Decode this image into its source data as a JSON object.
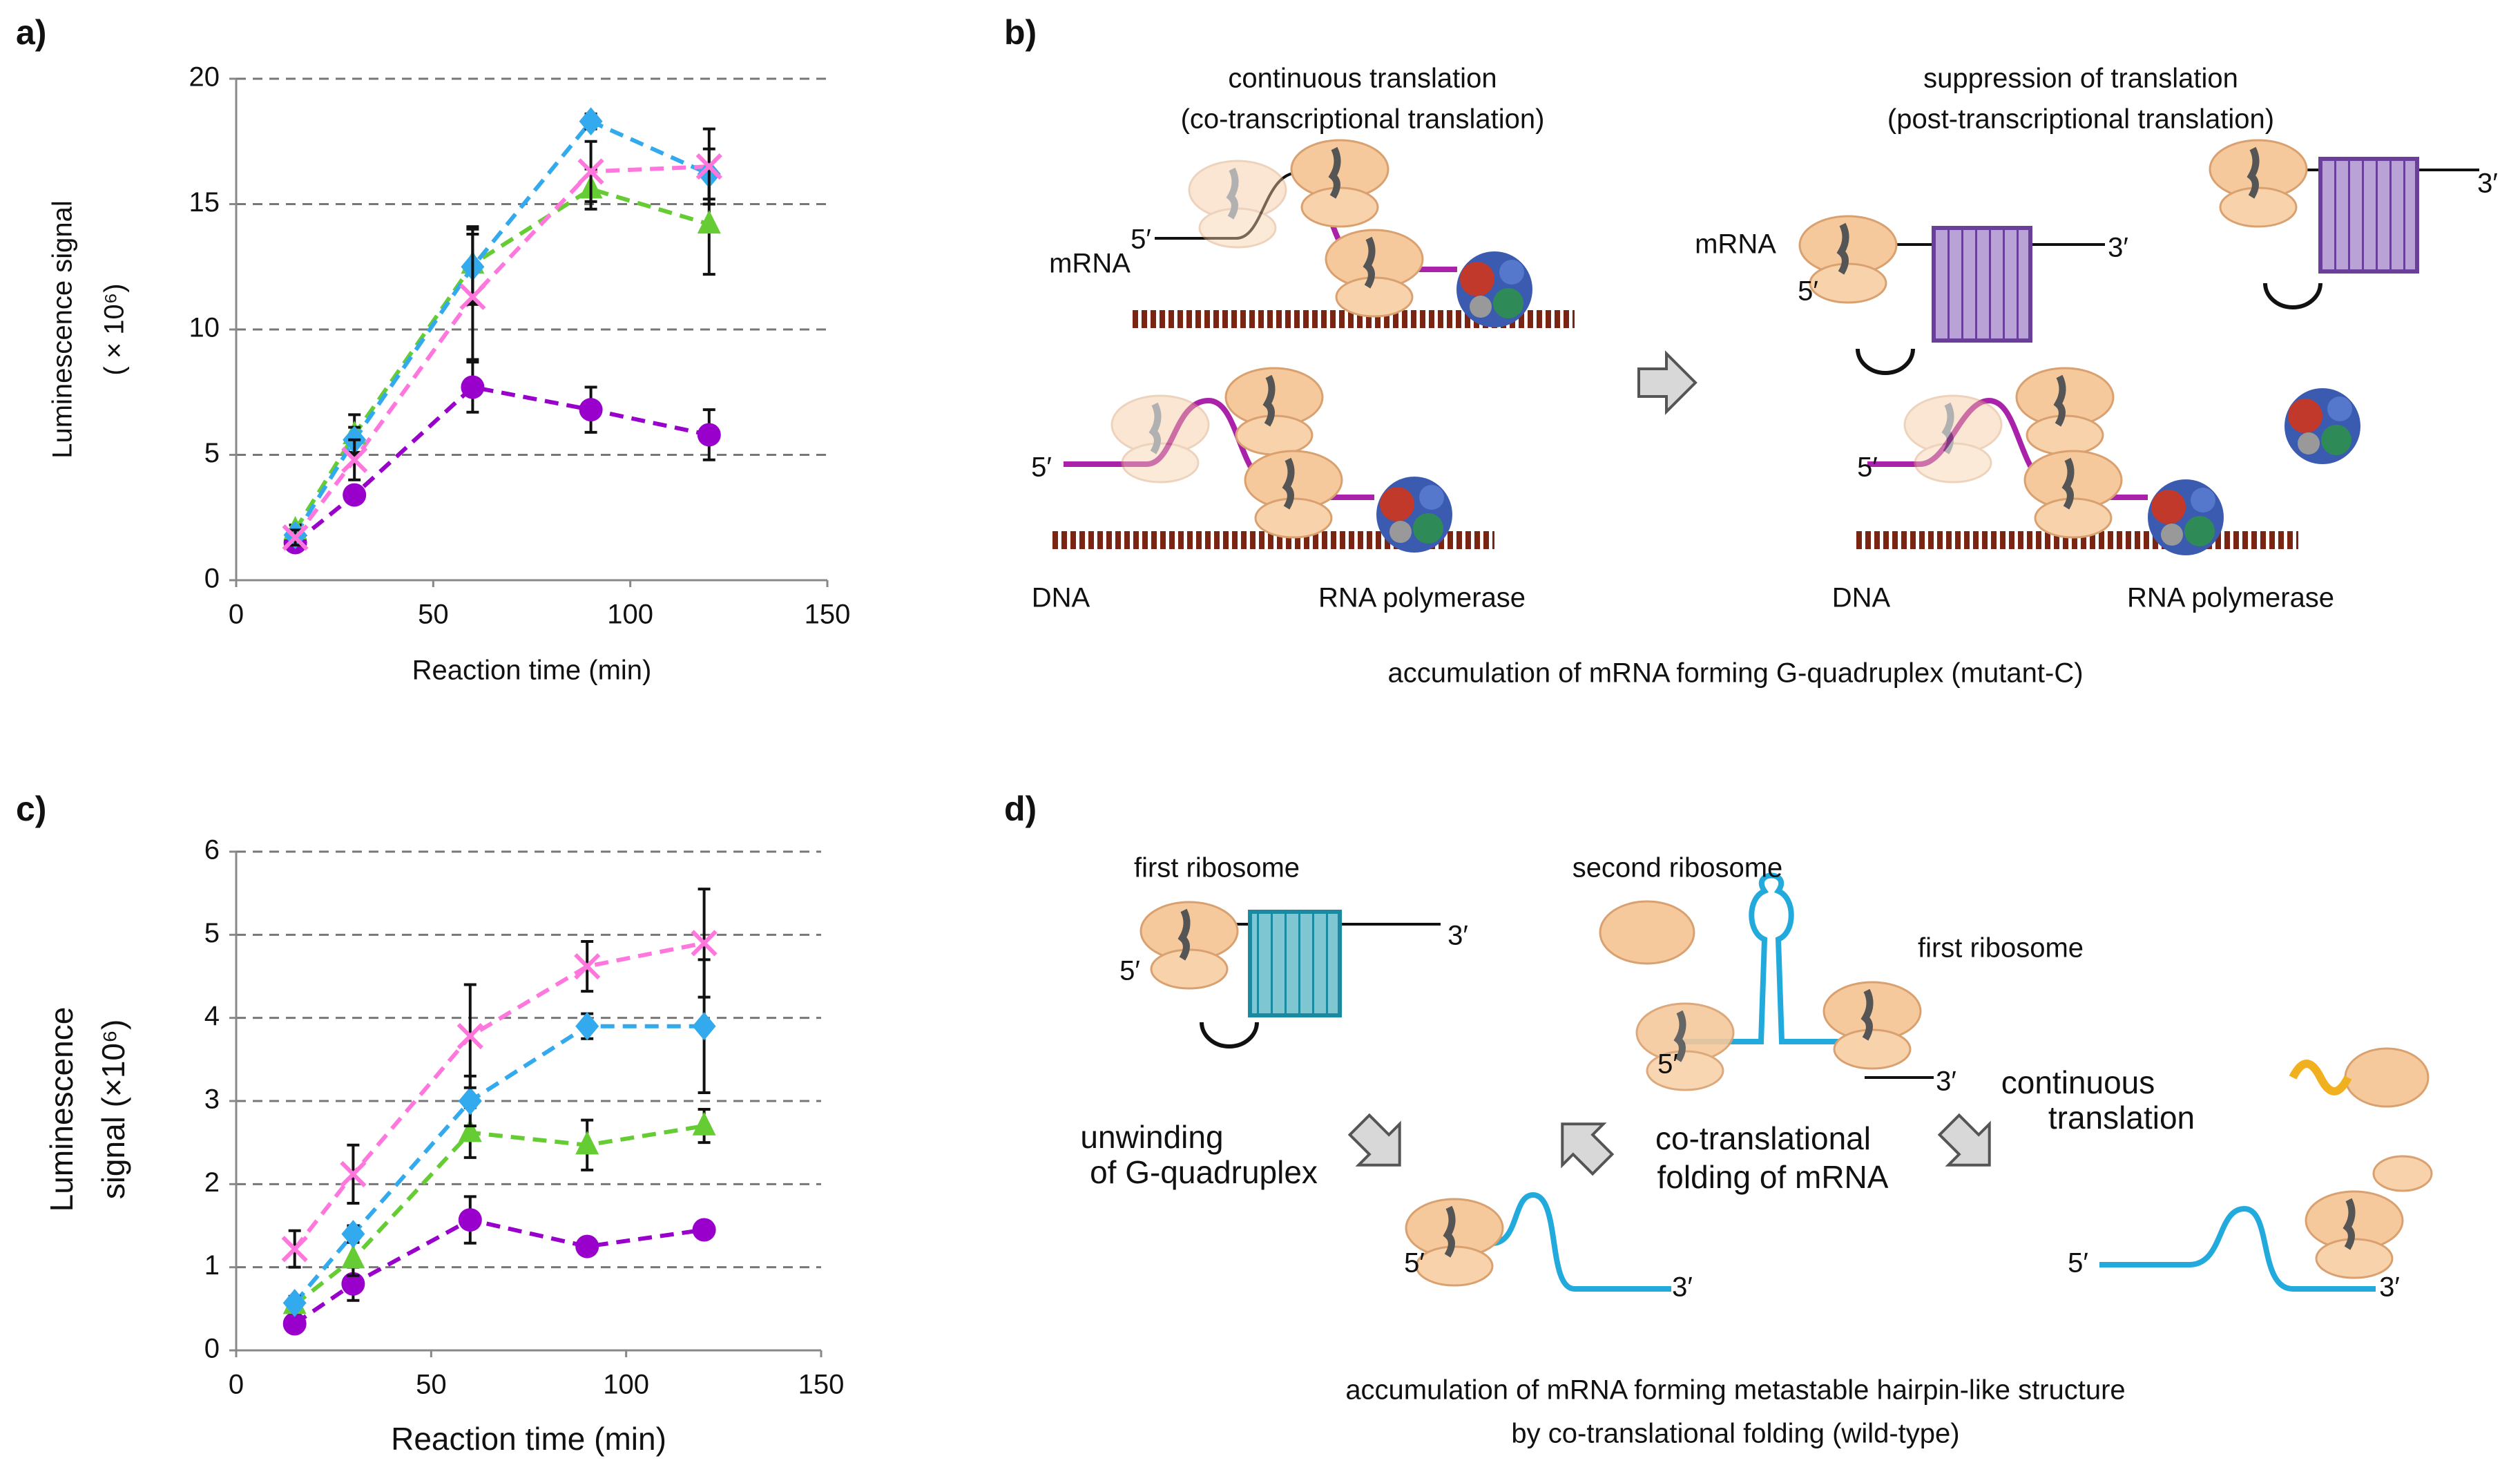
{
  "chart_data": [
    {
      "type": "line",
      "panel_label": "a)",
      "xlabel": "Reaction time (min)",
      "ylabel": [
        "Luminescence signal",
        "( × 10⁶)"
      ],
      "x": [
        15,
        30,
        60,
        90,
        120
      ],
      "xlim": [
        0,
        150
      ],
      "xticks": [
        0,
        50,
        100,
        150
      ],
      "ylim": [
        0,
        20
      ],
      "yticks": [
        0,
        5,
        10,
        15,
        20
      ],
      "grid": true,
      "line_style": "dashed",
      "series": [
        {
          "color": "#9900cc",
          "marker": "circle",
          "values": [
            1.5,
            3.4,
            7.7,
            6.8,
            5.8
          ],
          "errors": [
            0.3,
            0.3,
            1.0,
            0.9,
            1.0
          ]
        },
        {
          "color": "#66cc33",
          "marker": "triangle",
          "values": [
            2.0,
            5.8,
            12.6,
            15.6,
            14.2
          ],
          "errors": [
            0.2,
            0.8,
            1.5,
            0.8,
            2.0
          ]
        },
        {
          "color": "#33aaee",
          "marker": "diamond",
          "values": [
            1.8,
            5.6,
            12.5,
            18.3,
            16.2
          ],
          "errors": [
            0.1,
            0.5,
            1.5,
            0.3,
            1.0
          ]
        },
        {
          "color": "#ff77dd",
          "marker": "cross",
          "values": [
            1.7,
            4.8,
            11.3,
            16.3,
            16.5
          ],
          "errors": [
            0.3,
            0.8,
            2.5,
            1.2,
            1.5
          ]
        }
      ]
    },
    {
      "type": "line",
      "panel_label": "c)",
      "xlabel": "Reaction time (min)",
      "ylabel": [
        "Luminescence",
        "signal (×10⁶)"
      ],
      "x": [
        15,
        30,
        60,
        90,
        120
      ],
      "xlim": [
        0,
        150
      ],
      "xticks": [
        0,
        50,
        100,
        150
      ],
      "ylim": [
        0,
        6
      ],
      "yticks": [
        0,
        1,
        2,
        3,
        4,
        5,
        6
      ],
      "grid": true,
      "line_style": "dashed",
      "series": [
        {
          "color": "#9900cc",
          "marker": "circle",
          "values": [
            0.32,
            0.8,
            1.57,
            1.25,
            1.45
          ],
          "errors": [
            0.05,
            0.2,
            0.28,
            0.05,
            0.08
          ]
        },
        {
          "color": "#66cc33",
          "marker": "triangle",
          "values": [
            0.55,
            1.1,
            2.62,
            2.47,
            2.7
          ],
          "errors": [
            0.1,
            0.2,
            0.3,
            0.3,
            0.2
          ]
        },
        {
          "color": "#33aaee",
          "marker": "diamond",
          "values": [
            0.57,
            1.4,
            3.0,
            3.9,
            3.9
          ],
          "errors": [
            0.05,
            0.1,
            0.3,
            0.15,
            0.8
          ]
        },
        {
          "color": "#ff77dd",
          "marker": "cross",
          "values": [
            1.22,
            2.12,
            3.78,
            4.62,
            4.9
          ],
          "errors": [
            0.22,
            0.35,
            0.62,
            0.3,
            0.65
          ]
        }
      ]
    }
  ],
  "diagram_b": {
    "panel_label": "b)",
    "left_title": [
      "continuous translation",
      "(co-transcriptional translation)"
    ],
    "right_title": [
      "suppression of translation",
      "(post-transcriptional translation)"
    ],
    "labels": [
      "mRNA",
      "5′",
      "5′",
      "DNA",
      "RNA polymerase",
      "mRNA",
      "5′",
      "3′",
      "3′",
      "5′",
      "DNA",
      "RNA polymerase"
    ],
    "caption": "accumulation of mRNA forming G-quadruplex (mutant-C)"
  },
  "diagram_d": {
    "panel_label": "d)",
    "labels": [
      "first ribosome",
      "3′",
      "5′",
      "second ribosome",
      "first ribosome",
      "5′",
      "3′",
      "5′",
      "3′",
      "5′",
      "3′"
    ],
    "steps": [
      [
        "unwinding",
        "of G-quadruplex"
      ],
      [
        "co-translational",
        "folding of mRNA"
      ],
      [
        "continuous",
        "translation"
      ]
    ],
    "caption": [
      "accumulation of mRNA forming metastable hairpin-like structure",
      "by co-translational folding (wild-type)"
    ]
  }
}
